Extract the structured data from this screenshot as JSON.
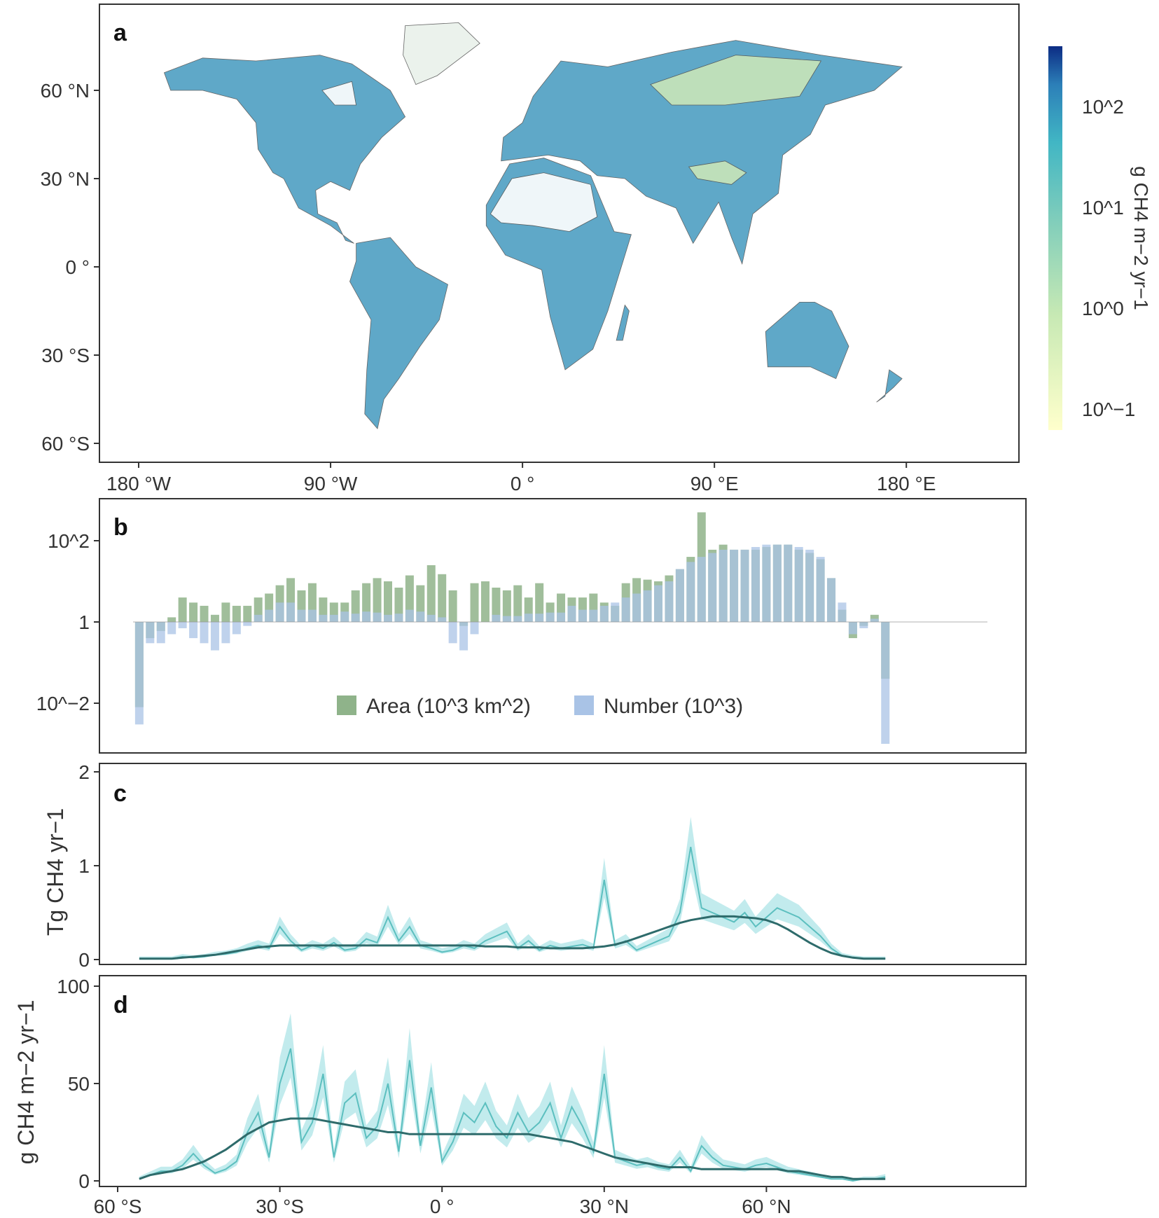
{
  "panels": {
    "a": {
      "label": "a",
      "x_ticks": [
        "180 °W",
        "90 °W",
        "0 °",
        "90 °E",
        "180 °E"
      ],
      "y_ticks": [
        "60 °N",
        "30 °N",
        "0 °",
        "30 °S",
        "60 °S"
      ],
      "colorbar": {
        "title": "g CH4 m−2 yr−1",
        "ticks": [
          "10^2",
          "10^1",
          "10^0",
          "10^−1"
        ],
        "low_color": "#ffffcc",
        "mid_color": "#41b6c4",
        "high_color": "#0c2c84"
      }
    },
    "b": {
      "label": "b",
      "y_ticks": [
        "10^2",
        "1",
        "10^−2"
      ],
      "legend": [
        {
          "name": "Area (10^3 km^2)",
          "color": "#8fb38a"
        },
        {
          "name": "Number (10^3)",
          "color": "#a9c3e6"
        }
      ]
    },
    "c": {
      "label": "c",
      "ylabel": "Tg CH4 yr−1",
      "y_ticks": [
        "2",
        "1",
        "0"
      ]
    },
    "d": {
      "label": "d",
      "ylabel": "g CH4 m−2 yr−1",
      "y_ticks": [
        "100",
        "50",
        "0"
      ],
      "x_ticks": [
        "60 °S",
        "30 °S",
        "0 °",
        "30 °N",
        "60 °N"
      ]
    }
  },
  "colors": {
    "line": "#5cbfbf",
    "band": "#a8e2e6",
    "smooth": "#2e6b6b",
    "area": "#8fb38a",
    "number": "#a9c3e6",
    "land": "#4e9fc3",
    "land_light": "#c9e6b9"
  },
  "chart_data": [
    {
      "type": "map",
      "title": "",
      "xlabel": "",
      "ylabel": "",
      "lon_range": [
        -180,
        180
      ],
      "lat_range": [
        -60,
        85
      ],
      "color_scale": "log",
      "value_range": [
        0.05,
        300
      ]
    },
    {
      "type": "bar",
      "title": "",
      "yscale": "log",
      "ylim": [
        0.001,
        1000
      ],
      "x_lat": [
        -56,
        -54,
        -52,
        -50,
        -48,
        -46,
        -44,
        -42,
        -40,
        -38,
        -36,
        -34,
        -32,
        -30,
        -28,
        -26,
        -24,
        -22,
        -20,
        -18,
        -16,
        -14,
        -12,
        -10,
        -8,
        -6,
        -4,
        -2,
        0,
        2,
        4,
        6,
        8,
        10,
        12,
        14,
        16,
        18,
        20,
        22,
        24,
        26,
        28,
        30,
        32,
        34,
        36,
        38,
        40,
        42,
        44,
        46,
        48,
        50,
        52,
        54,
        56,
        58,
        60,
        62,
        64,
        66,
        68,
        70,
        72,
        74,
        76,
        78,
        80,
        82
      ],
      "series": [
        {
          "name": "Area (10^3 km^2)",
          "values": [
            0.008,
            0.4,
            0.6,
            1.3,
            4,
            3,
            2.5,
            1.5,
            3,
            2.5,
            2.5,
            4,
            5,
            8,
            12,
            6,
            9,
            4,
            3,
            3,
            6,
            9,
            12,
            10,
            7,
            14,
            8,
            25,
            15,
            6,
            0.8,
            9,
            10,
            7,
            6,
            8,
            4,
            9,
            3,
            5,
            4,
            4,
            5,
            3,
            2.5,
            9,
            12,
            11,
            10,
            14,
            20,
            40,
            500,
            60,
            80,
            60,
            60,
            60,
            70,
            80,
            80,
            60,
            50,
            35,
            12,
            2,
            0.4,
            0.8,
            1.5,
            0.04
          ]
        },
        {
          "name": "Number (10^3)",
          "values": [
            0.003,
            0.3,
            0.3,
            0.5,
            0.7,
            0.4,
            0.3,
            0.2,
            0.3,
            0.5,
            0.8,
            1.5,
            2,
            3,
            3,
            2,
            2,
            1.5,
            1.5,
            1.8,
            1.6,
            1.8,
            1.7,
            1.5,
            1.6,
            2,
            1.8,
            1.5,
            1.3,
            0.3,
            0.2,
            0.5,
            1,
            1.5,
            1.4,
            1.4,
            1.6,
            1.6,
            1.7,
            1.7,
            2.5,
            2,
            2,
            2.5,
            3,
            4,
            5,
            6,
            8,
            10,
            20,
            30,
            40,
            50,
            60,
            60,
            60,
            70,
            80,
            80,
            80,
            70,
            60,
            40,
            12,
            3,
            0.5,
            0.7,
            1.2,
            0.001
          ]
        }
      ]
    },
    {
      "type": "line",
      "title": "",
      "ylabel": "Tg CH4 yr−1",
      "ylim": [
        0,
        2
      ],
      "xlim": [
        -60,
        85
      ],
      "x": [
        -56,
        -54,
        -52,
        -50,
        -48,
        -46,
        -44,
        -42,
        -40,
        -38,
        -36,
        -34,
        -32,
        -30,
        -28,
        -26,
        -24,
        -22,
        -20,
        -18,
        -16,
        -14,
        -12,
        -10,
        -8,
        -6,
        -4,
        -2,
        0,
        2,
        4,
        6,
        8,
        10,
        12,
        14,
        16,
        18,
        20,
        22,
        24,
        26,
        28,
        30,
        32,
        34,
        36,
        38,
        40,
        42,
        44,
        46,
        48,
        50,
        52,
        54,
        56,
        58,
        60,
        62,
        64,
        66,
        68,
        70,
        72,
        74,
        76,
        78,
        80,
        82
      ],
      "series": [
        {
          "name": "",
          "values": [
            0.01,
            0.01,
            0.01,
            0.01,
            0.03,
            0.02,
            0.03,
            0.05,
            0.06,
            0.08,
            0.12,
            0.15,
            0.12,
            0.35,
            0.2,
            0.1,
            0.15,
            0.12,
            0.18,
            0.1,
            0.12,
            0.22,
            0.18,
            0.45,
            0.2,
            0.35,
            0.15,
            0.12,
            0.08,
            0.1,
            0.15,
            0.12,
            0.2,
            0.25,
            0.3,
            0.12,
            0.2,
            0.1,
            0.15,
            0.12,
            0.14,
            0.16,
            0.12,
            0.85,
            0.15,
            0.2,
            0.1,
            0.15,
            0.2,
            0.25,
            0.5,
            1.2,
            0.55,
            0.5,
            0.45,
            0.4,
            0.5,
            0.35,
            0.45,
            0.55,
            0.5,
            0.45,
            0.35,
            0.25,
            0.12,
            0.04,
            0.02,
            0.01,
            0.01,
            0.01
          ]
        },
        {
          "name": "",
          "values": [
            0.01,
            0.01,
            0.01,
            0.01,
            0.02,
            0.03,
            0.04,
            0.05,
            0.07,
            0.09,
            0.11,
            0.13,
            0.14,
            0.15,
            0.15,
            0.15,
            0.15,
            0.15,
            0.15,
            0.15,
            0.15,
            0.15,
            0.15,
            0.15,
            0.15,
            0.15,
            0.15,
            0.15,
            0.15,
            0.15,
            0.15,
            0.15,
            0.14,
            0.14,
            0.14,
            0.13,
            0.13,
            0.13,
            0.12,
            0.12,
            0.12,
            0.12,
            0.13,
            0.14,
            0.16,
            0.19,
            0.23,
            0.27,
            0.31,
            0.35,
            0.39,
            0.42,
            0.44,
            0.46,
            0.46,
            0.46,
            0.45,
            0.44,
            0.42,
            0.38,
            0.32,
            0.25,
            0.18,
            0.12,
            0.07,
            0.04,
            0.02,
            0.01,
            0.01,
            0.01
          ]
        }
      ]
    },
    {
      "type": "line",
      "title": "",
      "ylabel": "g CH4 m−2 yr−1",
      "ylim": [
        0,
        100
      ],
      "xlim": [
        -60,
        85
      ],
      "x_ticks": [
        "60 °S",
        "30 °S",
        "0 °",
        "30 °N",
        "60 °N"
      ],
      "x": [
        -56,
        -54,
        -52,
        -50,
        -48,
        -46,
        -44,
        -42,
        -40,
        -38,
        -36,
        -34,
        -32,
        -30,
        -28,
        -26,
        -24,
        -22,
        -20,
        -18,
        -16,
        -14,
        -12,
        -10,
        -8,
        -6,
        -4,
        -2,
        0,
        2,
        4,
        6,
        8,
        10,
        12,
        14,
        16,
        18,
        20,
        22,
        24,
        26,
        28,
        30,
        32,
        34,
        36,
        38,
        40,
        42,
        44,
        46,
        48,
        50,
        52,
        54,
        56,
        58,
        60,
        62,
        64,
        66,
        68,
        70,
        72,
        74,
        76,
        78,
        80,
        82
      ],
      "series": [
        {
          "name": "",
          "values": [
            1,
            3,
            5,
            5,
            8,
            14,
            8,
            4,
            6,
            10,
            25,
            35,
            12,
            50,
            68,
            20,
            30,
            55,
            12,
            40,
            45,
            22,
            28,
            50,
            15,
            62,
            18,
            48,
            10,
            20,
            35,
            30,
            40,
            28,
            22,
            35,
            25,
            30,
            40,
            22,
            38,
            28,
            15,
            55,
            12,
            10,
            8,
            9,
            7,
            6,
            12,
            5,
            18,
            12,
            8,
            7,
            6,
            8,
            9,
            7,
            5,
            4,
            3,
            2,
            1,
            1,
            0,
            1,
            1,
            2
          ]
        },
        {
          "name": "",
          "values": [
            1,
            3,
            4,
            5,
            6,
            8,
            10,
            13,
            16,
            20,
            24,
            27,
            30,
            31,
            32,
            32,
            32,
            31,
            30,
            29,
            28,
            27,
            26,
            25,
            25,
            24,
            24,
            24,
            24,
            24,
            24,
            24,
            24,
            24,
            24,
            24,
            24,
            23,
            22,
            21,
            20,
            18,
            16,
            14,
            12,
            11,
            10,
            9,
            8,
            7,
            7,
            7,
            6,
            6,
            6,
            6,
            6,
            6,
            6,
            6,
            5,
            5,
            4,
            3,
            2,
            2,
            1,
            1,
            1,
            1
          ]
        }
      ]
    }
  ]
}
